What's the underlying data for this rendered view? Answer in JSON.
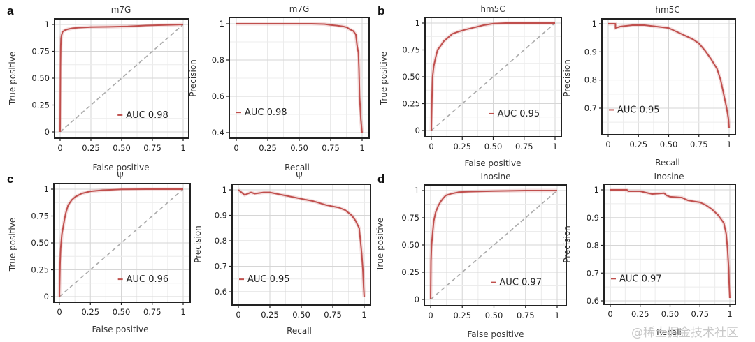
{
  "figure": {
    "watermark": "@稀土掘金技术社区",
    "line_color": "#c0504d",
    "diagonal_color": "#aaaaaa"
  },
  "chart_data": [
    {
      "id": "a-roc",
      "panel_letter": "a",
      "type": "line",
      "title": "m7G",
      "xlabel": "False positive",
      "ylabel": "True positive",
      "xlim": [
        0,
        1
      ],
      "ylim": [
        0,
        1
      ],
      "xticks": [
        0,
        0.25,
        0.5,
        0.75,
        1
      ],
      "xtick_labels": [
        "0",
        "0.25",
        "0.50",
        "0.75",
        "1"
      ],
      "yticks": [
        0,
        0.25,
        0.5,
        0.75,
        1
      ],
      "ytick_labels": [
        "0",
        "0.25",
        "0.50",
        "0.75",
        "1"
      ],
      "grid": true,
      "diagonal": true,
      "legend": "AUC 0.98",
      "legend_position": "lower-right",
      "series": [
        {
          "name": "AUC 0.98",
          "x": [
            0,
            0.003,
            0.005,
            0.008,
            0.012,
            0.02,
            0.035,
            0.06,
            0.1,
            0.15,
            0.25,
            0.4,
            0.55,
            0.7,
            0.85,
            1
          ],
          "y": [
            0,
            0.6,
            0.8,
            0.87,
            0.9,
            0.93,
            0.945,
            0.955,
            0.965,
            0.97,
            0.975,
            0.978,
            0.982,
            0.99,
            0.995,
            1
          ]
        }
      ]
    },
    {
      "id": "a-pr",
      "type": "line",
      "title": "m7G",
      "xlabel": "Recall",
      "ylabel": "Precision",
      "xlim": [
        0,
        1
      ],
      "ylim": [
        0.4,
        1
      ],
      "xticks": [
        0,
        0.25,
        0.5,
        0.75,
        1
      ],
      "xtick_labels": [
        "0",
        "0.25",
        "0.50",
        "0.75",
        "1"
      ],
      "yticks": [
        0.4,
        0.6,
        0.8,
        1
      ],
      "ytick_labels": [
        "0.4",
        "0.6",
        "0.8",
        "1"
      ],
      "grid": true,
      "diagonal": false,
      "legend": "AUC 0.98",
      "legend_position": "lower-left",
      "series": [
        {
          "name": "AUC 0.98",
          "x": [
            0,
            0.2,
            0.4,
            0.6,
            0.7,
            0.75,
            0.8,
            0.85,
            0.88,
            0.9,
            0.93,
            0.95,
            0.96,
            0.97,
            0.975,
            0.98,
            0.99,
            1
          ],
          "y": [
            1,
            1,
            1,
            1,
            0.998,
            0.993,
            0.99,
            0.985,
            0.98,
            0.97,
            0.96,
            0.94,
            0.88,
            0.84,
            0.75,
            0.6,
            0.47,
            0.4
          ]
        }
      ]
    },
    {
      "id": "b-roc",
      "panel_letter": "b",
      "type": "line",
      "title": "hm5C",
      "xlabel": "False positive",
      "ylabel": "True positive",
      "xlim": [
        0,
        1
      ],
      "ylim": [
        0,
        1
      ],
      "xticks": [
        0,
        0.25,
        0.5,
        0.75,
        1
      ],
      "xtick_labels": [
        "0",
        "0.25",
        "0.50",
        "0.75",
        "1"
      ],
      "yticks": [
        0,
        0.25,
        0.5,
        0.75,
        1
      ],
      "ytick_labels": [
        "0",
        "0.25",
        "0.50",
        "0.75",
        "1"
      ],
      "grid": true,
      "diagonal": true,
      "legend": "AUC 0.95",
      "legend_position": "lower-right",
      "series": [
        {
          "name": "AUC 0.95",
          "x": [
            0,
            0.005,
            0.01,
            0.02,
            0.035,
            0.05,
            0.07,
            0.1,
            0.13,
            0.17,
            0.22,
            0.28,
            0.35,
            0.42,
            0.5,
            0.6,
            0.8,
            1
          ],
          "y": [
            0,
            0.3,
            0.5,
            0.6,
            0.68,
            0.75,
            0.78,
            0.83,
            0.86,
            0.9,
            0.92,
            0.94,
            0.96,
            0.98,
            0.995,
            1,
            1,
            1
          ]
        }
      ]
    },
    {
      "id": "b-pr",
      "type": "line",
      "title": "hm5C",
      "xlabel": "Recall",
      "ylabel": "Precision",
      "xlim": [
        0,
        1
      ],
      "ylim": [
        0.62,
        1
      ],
      "xticks": [
        0,
        0.25,
        0.5,
        0.75,
        1
      ],
      "xtick_labels": [
        "0",
        "0.25",
        "0.50",
        "0.75",
        "1"
      ],
      "yticks": [
        0.7,
        0.8,
        0.9,
        1
      ],
      "ytick_labels": [
        "0.7",
        "0.8",
        "0.9",
        "1"
      ],
      "grid": true,
      "diagonal": false,
      "legend": "AUC 0.95",
      "legend_position": "lower-left",
      "series": [
        {
          "name": "AUC 0.95",
          "x": [
            0,
            0.06,
            0.06,
            0.1,
            0.2,
            0.3,
            0.4,
            0.5,
            0.55,
            0.6,
            0.65,
            0.7,
            0.75,
            0.8,
            0.85,
            0.9,
            0.93,
            0.96,
            0.98,
            0.995,
            1
          ],
          "y": [
            1,
            1,
            0.985,
            0.99,
            0.995,
            0.995,
            0.99,
            0.985,
            0.975,
            0.965,
            0.955,
            0.945,
            0.93,
            0.905,
            0.875,
            0.84,
            0.8,
            0.74,
            0.7,
            0.66,
            0.63
          ]
        }
      ]
    },
    {
      "id": "c-roc",
      "panel_letter": "c",
      "type": "line",
      "title": "Ψ",
      "xlabel": "False positive",
      "ylabel": "True positive",
      "xlim": [
        0,
        1
      ],
      "ylim": [
        0,
        1
      ],
      "xticks": [
        0,
        0.25,
        0.5,
        0.75,
        1
      ],
      "xtick_labels": [
        "0",
        "0.25",
        "0.50",
        "0.75",
        "1"
      ],
      "yticks": [
        0,
        0.25,
        0.5,
        0.75,
        1
      ],
      "ytick_labels": [
        "0",
        "0.25",
        "0.50",
        "0.75",
        "1"
      ],
      "grid": true,
      "diagonal": true,
      "legend": "AUC 0.96",
      "legend_position": "lower-right",
      "series": [
        {
          "name": "AUC 0.96",
          "x": [
            0,
            0.005,
            0.01,
            0.02,
            0.035,
            0.05,
            0.07,
            0.1,
            0.13,
            0.18,
            0.25,
            0.35,
            0.5,
            0.7,
            1
          ],
          "y": [
            0,
            0.3,
            0.45,
            0.58,
            0.68,
            0.77,
            0.85,
            0.9,
            0.93,
            0.96,
            0.98,
            0.99,
            0.998,
            1,
            1
          ]
        }
      ]
    },
    {
      "id": "c-pr",
      "type": "line",
      "title": "Ψ",
      "xlabel": "Recall",
      "ylabel": "Precision",
      "xlim": [
        0,
        1
      ],
      "ylim": [
        0.57,
        1
      ],
      "xticks": [
        0,
        0.25,
        0.5,
        0.75,
        1
      ],
      "xtick_labels": [
        "0",
        "0.25",
        "0.50",
        "0.75",
        "1"
      ],
      "yticks": [
        0.6,
        0.7,
        0.8,
        0.9,
        1
      ],
      "ytick_labels": [
        "0.6",
        "0.7",
        "0.8",
        "0.9",
        "1"
      ],
      "grid": true,
      "diagonal": false,
      "legend": "AUC 0.95",
      "legend_position": "lower-left",
      "series": [
        {
          "name": "AUC 0.95",
          "x": [
            0,
            0.05,
            0.1,
            0.13,
            0.2,
            0.25,
            0.3,
            0.4,
            0.5,
            0.6,
            0.7,
            0.75,
            0.8,
            0.85,
            0.9,
            0.93,
            0.96,
            0.97,
            0.98,
            0.99,
            0.995,
            1
          ],
          "y": [
            1,
            0.98,
            0.99,
            0.985,
            0.99,
            0.99,
            0.985,
            0.975,
            0.965,
            0.955,
            0.94,
            0.935,
            0.93,
            0.92,
            0.9,
            0.88,
            0.85,
            0.8,
            0.75,
            0.68,
            0.62,
            0.58
          ]
        }
      ]
    },
    {
      "id": "d-roc",
      "panel_letter": "d",
      "type": "line",
      "title": "Inosine",
      "xlabel": "False positive",
      "ylabel": "True positive",
      "xlim": [
        0,
        1
      ],
      "ylim": [
        0,
        1
      ],
      "xticks": [
        0,
        0.25,
        0.5,
        0.75,
        1
      ],
      "xtick_labels": [
        "0",
        "0.25",
        "0.50",
        "0.75",
        "1"
      ],
      "yticks": [
        0,
        0.25,
        0.5,
        0.75,
        1
      ],
      "ytick_labels": [
        "0",
        "0.25",
        "0.50",
        "0.75",
        "1"
      ],
      "grid": true,
      "diagonal": true,
      "legend": "AUC 0.97",
      "legend_position": "lower-right",
      "series": [
        {
          "name": "AUC 0.97",
          "x": [
            0,
            0.003,
            0.008,
            0.015,
            0.025,
            0.04,
            0.06,
            0.08,
            0.1,
            0.12,
            0.16,
            0.22,
            0.3,
            0.5,
            0.75,
            1
          ],
          "y": [
            0,
            0.35,
            0.5,
            0.6,
            0.72,
            0.8,
            0.86,
            0.9,
            0.93,
            0.955,
            0.97,
            0.985,
            0.99,
            0.995,
            1,
            1
          ]
        }
      ]
    },
    {
      "id": "d-pr",
      "type": "line",
      "title": "Inosine",
      "xlabel": "Recall",
      "ylabel": "Precision",
      "xlim": [
        0,
        1
      ],
      "ylim": [
        0.6,
        1
      ],
      "xticks": [
        0,
        0.25,
        0.5,
        0.75,
        1
      ],
      "xtick_labels": [
        "0",
        "0.25",
        "0.50",
        "0.75",
        "1"
      ],
      "yticks": [
        0.6,
        0.7,
        0.8,
        0.9,
        1
      ],
      "ytick_labels": [
        "0.6",
        "0.7",
        "0.8",
        "0.9",
        "1"
      ],
      "grid": true,
      "diagonal": false,
      "legend": "AUC 0.97",
      "legend_position": "lower-left",
      "series": [
        {
          "name": "AUC 0.97",
          "x": [
            0,
            0.14,
            0.15,
            0.25,
            0.3,
            0.35,
            0.45,
            0.47,
            0.5,
            0.6,
            0.65,
            0.75,
            0.8,
            0.85,
            0.9,
            0.95,
            0.97,
            0.98,
            0.99,
            0.995,
            1
          ],
          "y": [
            1,
            1,
            0.995,
            0.995,
            0.99,
            0.985,
            0.988,
            0.98,
            0.975,
            0.972,
            0.962,
            0.955,
            0.945,
            0.93,
            0.91,
            0.88,
            0.84,
            0.79,
            0.72,
            0.66,
            0.61
          ]
        }
      ]
    }
  ]
}
